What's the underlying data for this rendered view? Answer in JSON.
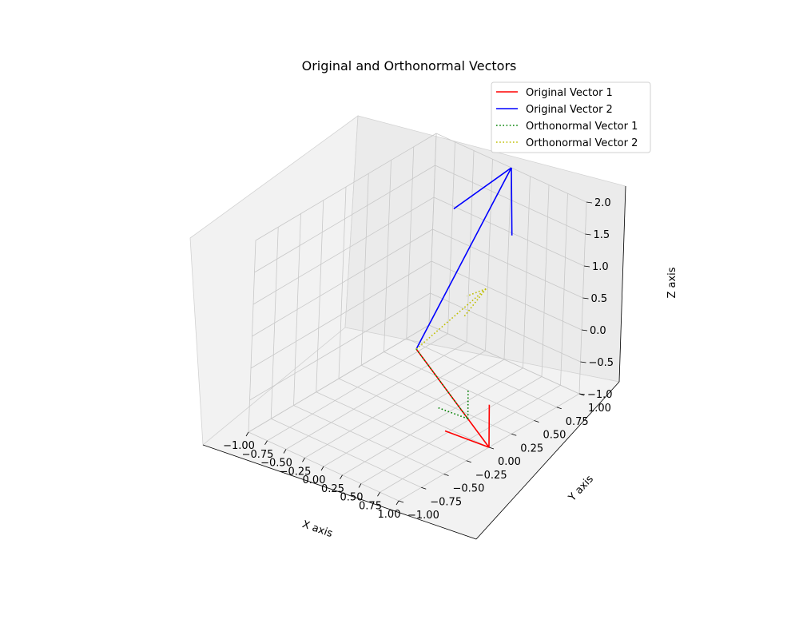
{
  "chart_data": {
    "type": "line3d",
    "title": "Original and Orthonormal Vectors",
    "xlabel": "X axis",
    "ylabel": "Y axis",
    "zlabel": "Z axis",
    "xlim": [
      -1,
      1
    ],
    "ylim": [
      -1,
      1
    ],
    "zlim": [
      -1,
      2
    ],
    "xticks": [
      "−1.00",
      "−0.75",
      "−0.50",
      "−0.25",
      "0.00",
      "0.25",
      "0.50",
      "0.75",
      "1.00"
    ],
    "yticks": [
      "−1.00",
      "−0.75",
      "−0.50",
      "−0.25",
      "0.00",
      "0.25",
      "0.50",
      "0.75",
      "1.00"
    ],
    "zticks": [
      "−1.0",
      "−0.5",
      "0.0",
      "0.5",
      "1.0",
      "1.5",
      "2.0"
    ],
    "grid": true,
    "legend_position": "top-right",
    "series": [
      {
        "name": "Original Vector 1",
        "color": "#ff0000",
        "style": "solid",
        "from": [
          0,
          0,
          0
        ],
        "to": [
          1,
          0,
          -1
        ]
      },
      {
        "name": "Original Vector 2",
        "color": "#0000ff",
        "style": "solid",
        "from": [
          0,
          0,
          0
        ],
        "to": [
          0,
          1,
          2
        ]
      },
      {
        "name": "Orthonormal Vector 1",
        "color": "#008000",
        "style": "dotted",
        "from": [
          0,
          0,
          0
        ],
        "to": [
          0.71,
          0,
          -0.71
        ]
      },
      {
        "name": "Orthonormal Vector 2",
        "color": "#bfbf00",
        "style": "dotted",
        "from": [
          0,
          0,
          0
        ],
        "to": [
          0.41,
          0.41,
          0.82
        ]
      }
    ]
  }
}
